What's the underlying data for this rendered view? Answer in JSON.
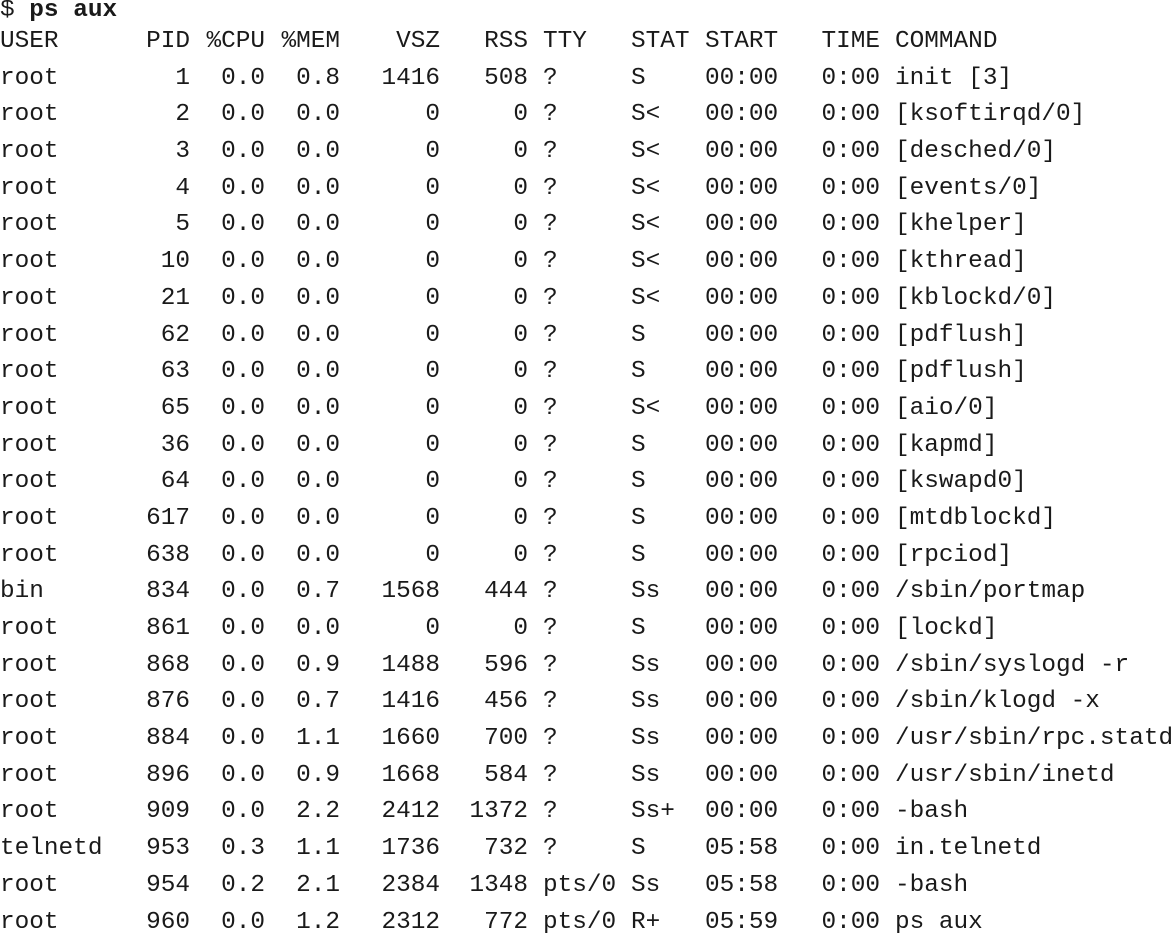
{
  "prompt": {
    "symbol": "$",
    "command": "ps aux"
  },
  "table": {
    "headers": [
      "USER",
      "PID",
      "%CPU",
      "%MEM",
      "VSZ",
      "RSS",
      "TTY",
      "STAT",
      "START",
      "TIME",
      "COMMAND"
    ],
    "rows": [
      [
        "root",
        "1",
        "0.0",
        "0.8",
        "1416",
        "508",
        "?",
        "S",
        "00:00",
        "0:00",
        "init [3]"
      ],
      [
        "root",
        "2",
        "0.0",
        "0.0",
        "0",
        "0",
        "?",
        "S<",
        "00:00",
        "0:00",
        "[ksoftirqd/0]"
      ],
      [
        "root",
        "3",
        "0.0",
        "0.0",
        "0",
        "0",
        "?",
        "S<",
        "00:00",
        "0:00",
        "[desched/0]"
      ],
      [
        "root",
        "4",
        "0.0",
        "0.0",
        "0",
        "0",
        "?",
        "S<",
        "00:00",
        "0:00",
        "[events/0]"
      ],
      [
        "root",
        "5",
        "0.0",
        "0.0",
        "0",
        "0",
        "?",
        "S<",
        "00:00",
        "0:00",
        "[khelper]"
      ],
      [
        "root",
        "10",
        "0.0",
        "0.0",
        "0",
        "0",
        "?",
        "S<",
        "00:00",
        "0:00",
        "[kthread]"
      ],
      [
        "root",
        "21",
        "0.0",
        "0.0",
        "0",
        "0",
        "?",
        "S<",
        "00:00",
        "0:00",
        "[kblockd/0]"
      ],
      [
        "root",
        "62",
        "0.0",
        "0.0",
        "0",
        "0",
        "?",
        "S",
        "00:00",
        "0:00",
        "[pdflush]"
      ],
      [
        "root",
        "63",
        "0.0",
        "0.0",
        "0",
        "0",
        "?",
        "S",
        "00:00",
        "0:00",
        "[pdflush]"
      ],
      [
        "root",
        "65",
        "0.0",
        "0.0",
        "0",
        "0",
        "?",
        "S<",
        "00:00",
        "0:00",
        "[aio/0]"
      ],
      [
        "root",
        "36",
        "0.0",
        "0.0",
        "0",
        "0",
        "?",
        "S",
        "00:00",
        "0:00",
        "[kapmd]"
      ],
      [
        "root",
        "64",
        "0.0",
        "0.0",
        "0",
        "0",
        "?",
        "S",
        "00:00",
        "0:00",
        "[kswapd0]"
      ],
      [
        "root",
        "617",
        "0.0",
        "0.0",
        "0",
        "0",
        "?",
        "S",
        "00:00",
        "0:00",
        "[mtdblockd]"
      ],
      [
        "root",
        "638",
        "0.0",
        "0.0",
        "0",
        "0",
        "?",
        "S",
        "00:00",
        "0:00",
        "[rpciod]"
      ],
      [
        "bin",
        "834",
        "0.0",
        "0.7",
        "1568",
        "444",
        "?",
        "Ss",
        "00:00",
        "0:00",
        "/sbin/portmap"
      ],
      [
        "root",
        "861",
        "0.0",
        "0.0",
        "0",
        "0",
        "?",
        "S",
        "00:00",
        "0:00",
        "[lockd]"
      ],
      [
        "root",
        "868",
        "0.0",
        "0.9",
        "1488",
        "596",
        "?",
        "Ss",
        "00:00",
        "0:00",
        "/sbin/syslogd -r"
      ],
      [
        "root",
        "876",
        "0.0",
        "0.7",
        "1416",
        "456",
        "?",
        "Ss",
        "00:00",
        "0:00",
        "/sbin/klogd -x"
      ],
      [
        "root",
        "884",
        "0.0",
        "1.1",
        "1660",
        "700",
        "?",
        "Ss",
        "00:00",
        "0:00",
        "/usr/sbin/rpc.statd"
      ],
      [
        "root",
        "896",
        "0.0",
        "0.9",
        "1668",
        "584",
        "?",
        "Ss",
        "00:00",
        "0:00",
        "/usr/sbin/inetd"
      ],
      [
        "root",
        "909",
        "0.0",
        "2.2",
        "2412",
        "1372",
        "?",
        "Ss+",
        "00:00",
        "0:00",
        "-bash"
      ],
      [
        "telnetd",
        "953",
        "0.3",
        "1.1",
        "1736",
        "732",
        "?",
        "S",
        "05:58",
        "0:00",
        "in.telnetd"
      ],
      [
        "root",
        "954",
        "0.2",
        "2.1",
        "2384",
        "1348",
        "pts/0",
        "Ss",
        "05:58",
        "0:00",
        "-bash"
      ],
      [
        "root",
        "960",
        "0.0",
        "1.2",
        "2312",
        "772",
        "pts/0",
        "R+",
        "05:59",
        "0:00",
        "ps aux"
      ]
    ]
  }
}
